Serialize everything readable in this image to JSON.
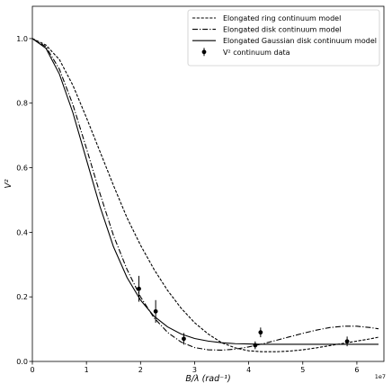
{
  "chart_data": {
    "type": "line",
    "xlabel": "B/λ (rad⁻¹)",
    "ylabel": "V²",
    "x_offset_label": "1e7",
    "xlim": [
      0,
      6.5
    ],
    "ylim": [
      0,
      1.1
    ],
    "x_ticks": [
      0,
      1,
      2,
      3,
      4,
      5,
      6
    ],
    "y_ticks": [
      0.0,
      0.2,
      0.4,
      0.6,
      0.8,
      1.0
    ],
    "x_tick_labels": [
      "0",
      "1",
      "2",
      "3",
      "4",
      "5",
      "6"
    ],
    "y_tick_labels": [
      "0.0",
      "0.2",
      "0.4",
      "0.6",
      "0.8",
      "1.0"
    ],
    "legend_position": "top-right",
    "series": [
      {
        "name": "Elongated ring continuum model",
        "style": "dashed",
        "x": [
          0,
          0.25,
          0.5,
          0.75,
          1.0,
          1.25,
          1.5,
          1.75,
          2.0,
          2.25,
          2.5,
          2.75,
          3.0,
          3.25,
          3.5,
          3.75,
          4.0,
          4.25,
          4.5,
          4.75,
          5.0,
          5.25,
          5.5,
          5.75,
          6.0,
          6.25,
          6.4
        ],
        "y": [
          1.0,
          0.98,
          0.935,
          0.855,
          0.755,
          0.65,
          0.545,
          0.445,
          0.36,
          0.285,
          0.22,
          0.165,
          0.12,
          0.085,
          0.058,
          0.042,
          0.033,
          0.03,
          0.03,
          0.032,
          0.036,
          0.042,
          0.049,
          0.056,
          0.063,
          0.07,
          0.075
        ]
      },
      {
        "name": "Elongated disk continuum model",
        "style": "dashdot",
        "x": [
          0,
          0.25,
          0.5,
          0.75,
          1.0,
          1.25,
          1.5,
          1.75,
          2.0,
          2.25,
          2.5,
          2.75,
          3.0,
          3.25,
          3.5,
          3.75,
          4.0,
          4.25,
          4.5,
          4.75,
          5.0,
          5.25,
          5.5,
          5.75,
          6.0,
          6.25,
          6.4
        ],
        "y": [
          1.0,
          0.975,
          0.905,
          0.795,
          0.66,
          0.52,
          0.39,
          0.285,
          0.2,
          0.135,
          0.09,
          0.06,
          0.043,
          0.036,
          0.035,
          0.038,
          0.045,
          0.054,
          0.065,
          0.076,
          0.087,
          0.097,
          0.105,
          0.109,
          0.109,
          0.105,
          0.101
        ]
      },
      {
        "name": "Elongated Gaussian disk continuum model",
        "style": "solid",
        "x": [
          0,
          0.25,
          0.5,
          0.75,
          1.0,
          1.25,
          1.5,
          1.75,
          2.0,
          2.25,
          2.5,
          2.75,
          3.0,
          3.25,
          3.5,
          3.75,
          4.0,
          4.25,
          4.5,
          5.0,
          5.5,
          6.0,
          6.4
        ],
        "y": [
          1.0,
          0.97,
          0.89,
          0.77,
          0.625,
          0.48,
          0.355,
          0.26,
          0.19,
          0.14,
          0.107,
          0.085,
          0.071,
          0.063,
          0.058,
          0.055,
          0.054,
          0.053,
          0.053,
          0.053,
          0.053,
          0.053,
          0.053
        ]
      }
    ],
    "data_series": {
      "name": "V² continuum data",
      "x": [
        1.97,
        2.28,
        2.8,
        4.12,
        4.22,
        5.82
      ],
      "y": [
        0.225,
        0.155,
        0.07,
        0.05,
        0.09,
        0.062
      ],
      "yerr": [
        0.04,
        0.035,
        0.018,
        0.012,
        0.015,
        0.015
      ]
    }
  }
}
